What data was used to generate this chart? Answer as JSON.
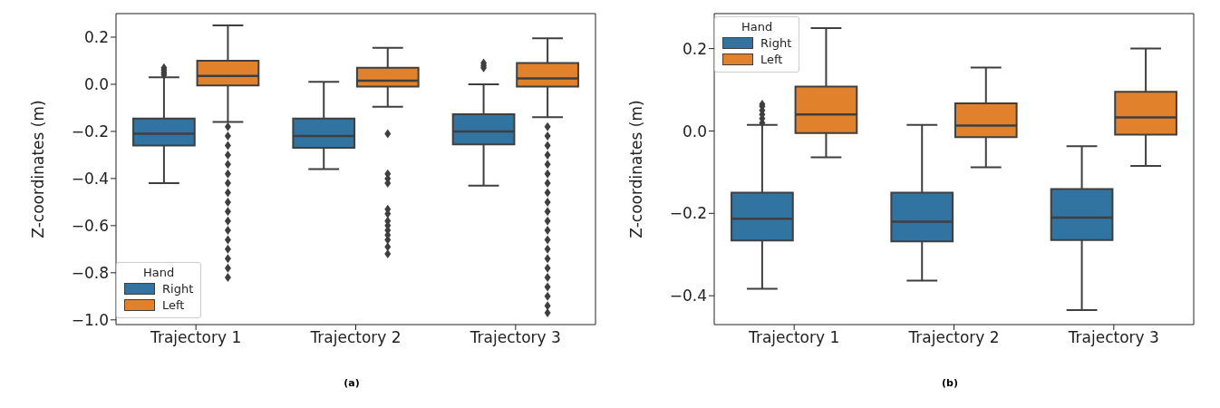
{
  "chart_data": [
    {
      "type": "box",
      "categories": [
        "Trajectory 1",
        "Trajectory 2",
        "Trajectory 3"
      ],
      "ylabel": "Z-coordinates (m)",
      "legend_title": "Hand",
      "legend": "bottom left",
      "grid": false,
      "ylim": [
        -1.02,
        0.3
      ],
      "yticks": [
        {
          "value": -1.0,
          "label": "−1.0"
        },
        {
          "value": -0.8,
          "label": "−0.8"
        },
        {
          "value": -0.6,
          "label": "−0.6"
        },
        {
          "value": -0.4,
          "label": "−0.4"
        },
        {
          "value": -0.2,
          "label": "−0.2"
        },
        {
          "value": 0.0,
          "label": "0.0"
        },
        {
          "value": 0.2,
          "label": "0.2"
        }
      ],
      "annotations": [
        "(a)"
      ],
      "series": [
        {
          "name": "Right",
          "color": "#3274a1",
          "boxes": [
            {
              "low": -0.42,
              "q1": -0.26,
              "median": -0.21,
              "q3": -0.145,
              "high": 0.03,
              "outliers": [
                0.04,
                0.05,
                0.06,
                0.07
              ]
            },
            {
              "low": -0.36,
              "q1": -0.27,
              "median": -0.22,
              "q3": -0.145,
              "high": 0.01
            },
            {
              "low": -0.43,
              "q1": -0.255,
              "median": -0.2,
              "q3": -0.127,
              "high": 0.0,
              "outliers": [
                0.07,
                0.08,
                0.09
              ]
            }
          ]
        },
        {
          "name": "Left",
          "color": "#e1812c",
          "boxes": [
            {
              "low": -0.16,
              "q1": -0.005,
              "median": 0.035,
              "q3": 0.1,
              "high": 0.25,
              "outliers": [
                -0.18,
                -0.22,
                -0.26,
                -0.3,
                -0.34,
                -0.38,
                -0.42,
                -0.46,
                -0.5,
                -0.54,
                -0.58,
                -0.62,
                -0.66,
                -0.7,
                -0.74,
                -0.78,
                -0.82
              ]
            },
            {
              "low": -0.095,
              "q1": -0.01,
              "median": 0.015,
              "q3": 0.07,
              "high": 0.155,
              "outliers": [
                -0.21,
                -0.38,
                -0.4,
                -0.42,
                -0.53,
                -0.55,
                -0.58,
                -0.6,
                -0.62,
                -0.64,
                -0.66,
                -0.69,
                -0.72
              ]
            },
            {
              "low": -0.14,
              "q1": -0.01,
              "median": 0.025,
              "q3": 0.09,
              "high": 0.195,
              "outliers": [
                -0.18,
                -0.22,
                -0.26,
                -0.3,
                -0.34,
                -0.38,
                -0.42,
                -0.46,
                -0.5,
                -0.54,
                -0.58,
                -0.62,
                -0.66,
                -0.7,
                -0.74,
                -0.78,
                -0.82,
                -0.86,
                -0.9,
                -0.94,
                -0.97
              ]
            }
          ]
        }
      ]
    },
    {
      "type": "box",
      "categories": [
        "Trajectory 1",
        "Trajectory 2",
        "Trajectory 3"
      ],
      "ylabel": "Z-coordinates (m)",
      "legend_title": "Hand",
      "legend": "top left",
      "grid": false,
      "ylim": [
        -0.47,
        0.285
      ],
      "yticks": [
        {
          "value": -0.4,
          "label": "−0.4"
        },
        {
          "value": -0.2,
          "label": "−0.2"
        },
        {
          "value": 0.0,
          "label": "0.0"
        },
        {
          "value": 0.2,
          "label": "0.2"
        }
      ],
      "annotations": [
        "(b)"
      ],
      "series": [
        {
          "name": "Right",
          "color": "#3274a1",
          "boxes": [
            {
              "low": -0.383,
              "q1": -0.266,
              "median": -0.213,
              "q3": -0.15,
              "high": 0.015,
              "outliers": [
                0.02,
                0.03,
                0.04,
                0.05,
                0.06,
                0.065
              ]
            },
            {
              "low": -0.363,
              "q1": -0.268,
              "median": -0.22,
              "q3": -0.15,
              "high": 0.015
            },
            {
              "low": -0.435,
              "q1": -0.265,
              "median": -0.21,
              "q3": -0.141,
              "high": -0.037
            }
          ]
        },
        {
          "name": "Left",
          "color": "#e1812c",
          "boxes": [
            {
              "low": -0.064,
              "q1": -0.005,
              "median": 0.04,
              "q3": 0.108,
              "high": 0.25
            },
            {
              "low": -0.088,
              "q1": -0.015,
              "median": 0.013,
              "q3": 0.067,
              "high": 0.154
            },
            {
              "low": -0.085,
              "q1": -0.009,
              "median": 0.033,
              "q3": 0.095,
              "high": 0.2
            }
          ]
        }
      ]
    }
  ]
}
